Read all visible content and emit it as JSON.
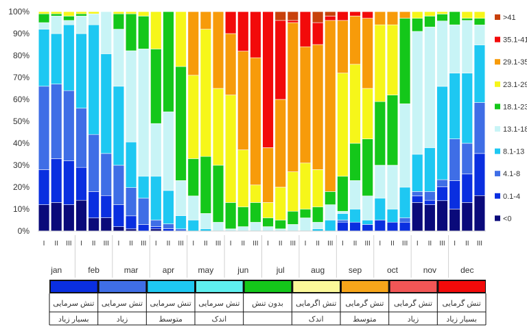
{
  "colors": {
    "lt0": "#0a0a7a",
    "c0_1_4": "#0a2fe0",
    "c4_1_8": "#3f6ee6",
    "c8_1_13": "#1ec8f2",
    "c13_1_18": "#c8f4f6",
    "c18_1_23": "#14c71a",
    "c23_1_29": "#f6f61a",
    "c29_1_35": "#f79b0a",
    "c35_1_41": "#f20a0a",
    "gt41": "#c8400a"
  },
  "chart_data": {
    "type": "bar",
    "stacked": true,
    "percent": true,
    "ylim": [
      0,
      100
    ],
    "y_ticks": [
      "0%",
      "10%",
      "20%",
      "30%",
      "40%",
      "50%",
      "60%",
      "70%",
      "80%",
      "90%",
      "100%"
    ],
    "months": [
      "jan",
      "feb",
      "mar",
      "apr",
      "may",
      "jun",
      "jul",
      "aug",
      "sep",
      "oct",
      "nov",
      "dec"
    ],
    "decade_labels": [
      "I",
      "II",
      "III"
    ],
    "categories": [
      "jan I",
      "jan II",
      "jan III",
      "feb I",
      "feb II",
      "feb III",
      "mar I",
      "mar II",
      "mar III",
      "apr I",
      "apr II",
      "apr III",
      "may I",
      "may II",
      "may III",
      "jun I",
      "jun II",
      "jun III",
      "jul I",
      "jul II",
      "jul III",
      "aug I",
      "aug II",
      "aug III",
      "sep I",
      "sep II",
      "sep III",
      "oct I",
      "oct II",
      "oct III",
      "nov I",
      "nov II",
      "nov III",
      "dec I",
      "dec II",
      "dec III"
    ],
    "series": [
      {
        "name": "<0",
        "color_key": "lt0",
        "values": [
          12,
          13,
          12,
          14,
          6,
          6,
          2,
          1,
          0,
          1,
          0,
          0,
          0,
          0,
          0,
          0,
          0,
          0,
          0,
          0,
          0,
          0,
          0,
          0,
          0,
          0,
          0,
          0,
          0,
          0,
          13,
          12,
          13,
          10,
          13,
          16
        ]
      },
      {
        "name": "0.1-4",
        "color_key": "c0_1_4",
        "values": [
          16,
          20,
          20,
          15,
          12,
          10,
          10,
          6,
          3,
          1,
          1,
          0,
          0,
          0,
          0,
          0,
          0,
          0,
          0,
          0,
          0,
          0,
          0,
          0,
          4,
          4,
          3,
          5,
          4,
          4,
          3,
          2,
          6,
          13,
          13,
          19
        ]
      },
      {
        "name": "4.1-8",
        "color_key": "c4_1_8",
        "values": [
          38,
          34,
          32,
          27,
          26,
          19,
          18,
          13,
          12,
          3,
          2,
          1,
          0,
          0,
          0,
          0,
          0,
          0,
          0,
          0,
          0,
          0,
          0,
          0,
          1,
          0,
          0,
          0,
          0,
          2,
          2,
          4,
          3,
          19,
          14,
          23
        ]
      },
      {
        "name": "8.1-13",
        "color_key": "c8_1_13",
        "values": [
          26,
          23,
          30,
          34,
          50,
          45,
          36,
          21,
          10,
          20,
          14,
          6,
          5,
          1,
          0,
          0,
          0,
          0,
          0,
          0,
          0,
          0,
          1,
          5,
          3,
          6,
          2,
          10,
          6,
          14,
          17,
          20,
          40,
          30,
          32,
          26
        ]
      },
      {
        "name": "13.1-18",
        "color_key": "c13_1_18",
        "values": [
          3,
          8,
          2,
          8,
          5,
          19,
          26,
          42,
          58,
          24,
          33,
          16,
          11,
          7,
          4,
          1,
          2,
          4,
          2,
          1,
          3,
          6,
          3,
          7,
          1,
          13,
          11,
          15,
          20,
          38,
          56,
          55,
          28,
          22,
          24,
          9
        ]
      },
      {
        "name": "18.1-23",
        "color_key": "c18_1_23",
        "values": [
          4,
          1,
          2,
          1,
          0,
          0,
          7,
          17,
          15,
          34,
          42,
          52,
          17,
          26,
          26,
          12,
          9,
          9,
          4,
          4,
          6,
          4,
          7,
          6,
          16,
          17,
          26,
          29,
          32,
          39,
          6,
          5,
          3,
          6,
          1,
          3
        ]
      },
      {
        "name": "23.1-29",
        "color_key": "c23_1_29",
        "values": [
          1,
          1,
          2,
          1,
          1,
          0,
          1,
          1,
          2,
          17,
          0,
          25,
          38,
          58,
          35,
          49,
          26,
          8,
          7,
          15,
          18,
          21,
          17,
          0,
          47,
          36,
          23,
          35,
          32,
          0,
          3,
          2,
          1,
          0,
          3,
          3
        ]
      },
      {
        "name": "29.1-35",
        "color_key": "c29_1_35",
        "values": [
          0,
          0,
          0,
          0,
          0,
          0,
          0,
          0,
          0,
          0,
          0,
          0,
          29,
          8,
          35,
          28,
          45,
          58,
          25,
          40,
          68,
          53,
          57,
          78,
          24,
          22,
          32,
          6,
          6,
          3,
          0,
          0,
          0,
          0,
          0,
          0
        ]
      },
      {
        "name": "35.1-41",
        "color_key": "c35_1_41",
        "values": [
          0,
          0,
          0,
          0,
          0,
          0,
          0,
          0,
          0,
          0,
          0,
          0,
          0,
          0,
          0,
          10,
          18,
          21,
          62,
          36,
          1,
          16,
          10,
          2,
          4,
          2,
          3,
          0,
          0,
          0,
          0,
          0,
          0,
          0,
          0,
          0
        ]
      },
      {
        "name": ">41",
        "color_key": "gt41",
        "values": [
          0,
          0,
          0,
          0,
          0,
          0,
          0,
          0,
          0,
          0,
          0,
          0,
          0,
          0,
          0,
          0,
          0,
          0,
          0,
          4,
          4,
          0,
          5,
          2,
          0,
          0,
          0,
          0,
          0,
          0,
          0,
          0,
          0,
          0,
          0,
          0
        ]
      }
    ],
    "legend": {
      "position": "right",
      "order_top_to_bottom": [
        ">41",
        "35.1-41",
        "29.1-35",
        "23.1-29",
        "18.1-23",
        "13.1-18",
        "8.1-13",
        "4.1-8",
        "0.1-4",
        "<0"
      ]
    },
    "grid": false
  },
  "stress_scale": [
    {
      "color": "#0a2fe0",
      "line1": "تنش سرمایی",
      "line2": "بسیار زیاد"
    },
    {
      "color": "#3f6ee6",
      "line1": "تنش سرمایی",
      "line2": "زیاد"
    },
    {
      "color": "#1ec8f2",
      "line1": "تنش سرمایی",
      "line2": "متوسط"
    },
    {
      "color": "#5eefef",
      "line1": "تنش سرمایی",
      "line2": "اندک"
    },
    {
      "color": "#14c71a",
      "line1": "بدون تنش",
      "line2": ""
    },
    {
      "color": "#fbf899",
      "line1": "تنش اگرمایی",
      "line2": "اندک"
    },
    {
      "color": "#f7a51a",
      "line1": "تنش گرمایی",
      "line2": "متوسط"
    },
    {
      "color": "#f25656",
      "line1": "تنش گرمایی",
      "line2": "زیاد"
    },
    {
      "color": "#f20a0a",
      "line1": "تنش گرمایی",
      "line2": "بسیار زیاد"
    }
  ]
}
